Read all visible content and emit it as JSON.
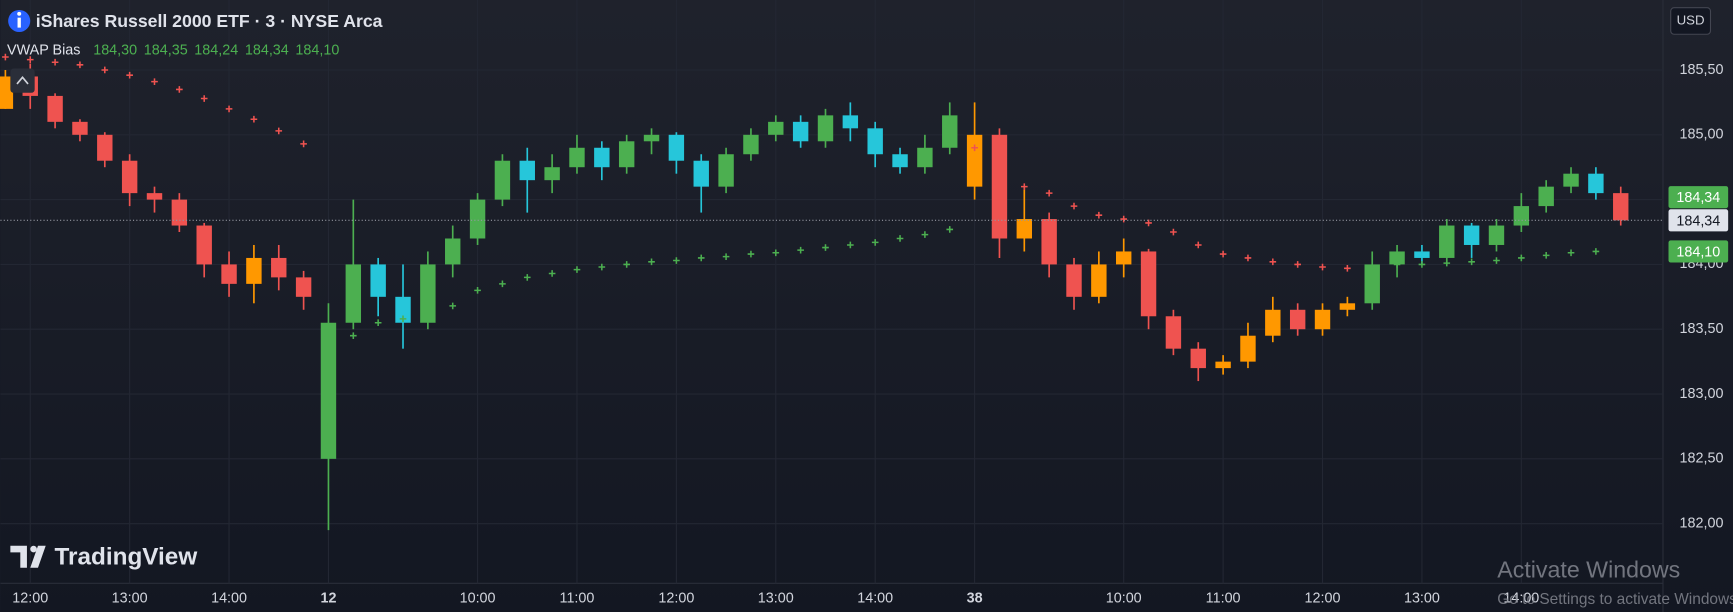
{
  "chart_data": {
    "type": "candlestick",
    "title": "iShares Russell 2000 ETF · 3 · NYSE Arca",
    "indicator": {
      "name": "VWAP Bias",
      "values": [
        "184,30",
        "184,35",
        "184,24",
        "184,34",
        "184,10"
      ],
      "color": "#4caf50"
    },
    "currency": "USD",
    "x": [
      -1,
      0,
      1,
      2,
      3,
      4,
      5,
      6,
      7,
      8,
      9,
      10,
      11,
      12,
      13,
      14,
      15,
      16,
      17,
      18,
      19,
      20,
      21,
      22,
      23,
      24,
      25,
      26,
      27,
      28,
      29,
      30,
      31,
      32,
      33,
      34,
      35,
      36,
      37,
      38,
      39,
      40,
      41,
      42,
      43,
      44,
      45,
      46,
      47,
      48,
      49,
      50,
      51,
      52,
      53,
      54,
      55,
      56,
      57,
      58,
      59,
      60,
      61,
      62,
      63,
      64
    ],
    "open": [
      185.2,
      185.45,
      185.3,
      185.1,
      185.0,
      184.8,
      184.55,
      184.5,
      184.3,
      184.0,
      183.85,
      184.05,
      183.9,
      182.5,
      183.55,
      184.0,
      183.75,
      183.55,
      184.0,
      184.2,
      184.5,
      184.8,
      184.65,
      184.75,
      184.9,
      184.75,
      184.95,
      185.0,
      184.8,
      184.6,
      184.85,
      185.0,
      185.1,
      184.95,
      185.15,
      185.05,
      184.85,
      184.75,
      184.9,
      184.6,
      185.0,
      184.2,
      184.35,
      184.0,
      183.75,
      184.0,
      184.1,
      183.6,
      183.35,
      183.2,
      183.25,
      183.45,
      183.65,
      183.5,
      183.65,
      183.7,
      184.0,
      184.1,
      184.05,
      184.3,
      184.15,
      184.3,
      184.45,
      184.6,
      184.7,
      184.55
    ],
    "high": [
      185.5,
      185.55,
      185.32,
      185.12,
      185.02,
      184.85,
      184.6,
      184.55,
      184.32,
      184.1,
      184.15,
      184.15,
      183.95,
      183.7,
      184.5,
      184.05,
      184.0,
      184.1,
      184.3,
      184.55,
      184.85,
      184.9,
      184.85,
      185.0,
      184.95,
      185.0,
      185.05,
      185.02,
      184.85,
      184.9,
      185.05,
      185.15,
      185.15,
      185.2,
      185.25,
      185.1,
      184.9,
      185.0,
      185.25,
      185.25,
      185.05,
      184.6,
      184.4,
      184.05,
      184.1,
      184.2,
      184.12,
      183.65,
      183.4,
      183.3,
      183.55,
      183.75,
      183.7,
      183.7,
      183.75,
      184.1,
      184.15,
      184.15,
      184.35,
      184.32,
      184.35,
      184.55,
      184.65,
      184.75,
      184.75,
      184.6
    ],
    "low": [
      185.2,
      185.2,
      185.05,
      184.95,
      184.75,
      184.45,
      184.4,
      184.25,
      183.9,
      183.75,
      183.7,
      183.8,
      183.65,
      181.95,
      183.5,
      183.6,
      183.35,
      183.5,
      183.9,
      184.15,
      184.45,
      184.4,
      184.55,
      184.7,
      184.65,
      184.7,
      184.85,
      184.7,
      184.4,
      184.55,
      184.8,
      184.95,
      184.9,
      184.9,
      184.95,
      184.75,
      184.7,
      184.7,
      184.85,
      184.5,
      184.05,
      184.1,
      183.9,
      183.65,
      183.7,
      183.9,
      183.5,
      183.3,
      183.1,
      183.15,
      183.2,
      183.4,
      183.45,
      183.45,
      183.6,
      183.65,
      183.9,
      184.0,
      184.0,
      184.05,
      184.1,
      184.25,
      184.4,
      184.55,
      184.5,
      184.3
    ],
    "close": [
      185.45,
      185.3,
      185.1,
      185.0,
      184.8,
      184.55,
      184.5,
      184.3,
      184.0,
      183.85,
      184.05,
      183.9,
      183.75,
      183.55,
      184.0,
      183.75,
      183.55,
      184.0,
      184.2,
      184.5,
      184.8,
      184.65,
      184.75,
      184.9,
      184.75,
      184.95,
      185.0,
      184.8,
      184.6,
      184.85,
      185.0,
      185.1,
      184.95,
      185.15,
      185.05,
      184.85,
      184.75,
      184.9,
      185.15,
      185.0,
      184.2,
      184.35,
      184.0,
      183.75,
      184.0,
      184.1,
      183.6,
      183.35,
      183.2,
      183.25,
      183.45,
      183.65,
      183.5,
      183.65,
      183.7,
      184.0,
      184.1,
      184.05,
      184.3,
      184.15,
      184.3,
      184.45,
      184.6,
      184.7,
      184.55,
      184.34
    ],
    "vwap_upper": {
      "color": "#ef5350",
      "values": [
        185.6,
        185.58,
        185.56,
        185.54,
        185.5,
        185.46,
        185.41,
        185.35,
        185.28,
        185.2,
        185.12,
        185.03,
        184.93,
        null,
        null,
        null,
        null,
        null,
        null,
        null,
        null,
        null,
        null,
        null,
        null,
        null,
        null,
        null,
        null,
        null,
        null,
        null,
        null,
        null,
        null,
        null,
        null,
        null,
        null,
        184.9,
        184.7,
        184.6,
        184.55,
        184.45,
        184.38,
        184.35,
        184.32,
        184.25,
        184.15,
        184.08,
        184.05,
        184.02,
        184.0,
        183.98,
        183.97,
        null,
        null,
        null,
        null,
        null,
        null,
        null,
        null,
        null,
        null,
        null
      ]
    },
    "vwap_lower": {
      "color": "#4caf50",
      "values": [
        null,
        null,
        null,
        null,
        null,
        null,
        null,
        null,
        null,
        null,
        null,
        null,
        null,
        182.75,
        183.45,
        183.55,
        183.58,
        183.62,
        183.68,
        183.8,
        183.85,
        183.9,
        183.93,
        183.96,
        183.98,
        184.0,
        184.02,
        184.03,
        184.05,
        184.06,
        184.08,
        184.09,
        184.11,
        184.13,
        184.15,
        184.17,
        184.2,
        184.23,
        184.27,
        null,
        null,
        null,
        null,
        null,
        null,
        null,
        null,
        null,
        null,
        null,
        null,
        null,
        null,
        null,
        null,
        183.98,
        184.0,
        184.0,
        184.01,
        184.02,
        184.03,
        184.05,
        184.07,
        184.09,
        184.1
      ]
    },
    "candle_colors": {
      "bull_up": "#4caf50",
      "bull_down": "#26c6da",
      "bear_up": "#ff9800",
      "bear_down": "#ef5350"
    },
    "xlim": [
      -1.2,
      65.7
    ],
    "xticks": [
      {
        "value": 0,
        "label": "12:00"
      },
      {
        "value": 4,
        "label": "13:00"
      },
      {
        "value": 8,
        "label": "14:00"
      },
      12,
      {
        "value": 18,
        "label": "10:00"
      },
      {
        "value": 22,
        "label": "11:00"
      },
      {
        "value": 26,
        "label": "12:00"
      },
      {
        "value": 30,
        "label": "13:00"
      },
      {
        "value": 34,
        "label": "14:00"
      },
      38,
      {
        "value": 44,
        "label": "10:00"
      },
      {
        "value": 48,
        "label": "11:00"
      },
      {
        "value": 52,
        "label": "12:00"
      },
      {
        "value": 56,
        "label": "13:00"
      },
      {
        "value": 60,
        "label": "14:00"
      }
    ],
    "ylim": [
      181.54,
      186.04
    ],
    "yticks": [
      {
        "value": 182,
        "label": "182,00"
      },
      {
        "value": 182.5,
        "label": "182,50"
      },
      {
        "value": 183,
        "label": "183,00"
      },
      {
        "value": 183.5,
        "label": "183,50"
      },
      {
        "value": 184,
        "label": "184,00"
      },
      {
        "value": 184.5,
        "label": "184,50"
      },
      {
        "value": 185,
        "label": "185,00"
      },
      {
        "value": 185.5,
        "label": "185,50"
      }
    ],
    "grid": true,
    "last_price": {
      "value": 184.34,
      "label": "184,34"
    },
    "price_labels": [
      {
        "value": 184.34,
        "label": "184,34",
        "color": "#4caf50"
      },
      {
        "value": 184.1,
        "label": "184,10",
        "color": "#4caf50"
      }
    ],
    "watermark": "TradingView",
    "overlay": {
      "title": "Activate Windows",
      "subtitle": "Go to Settings to activate Windows."
    }
  }
}
